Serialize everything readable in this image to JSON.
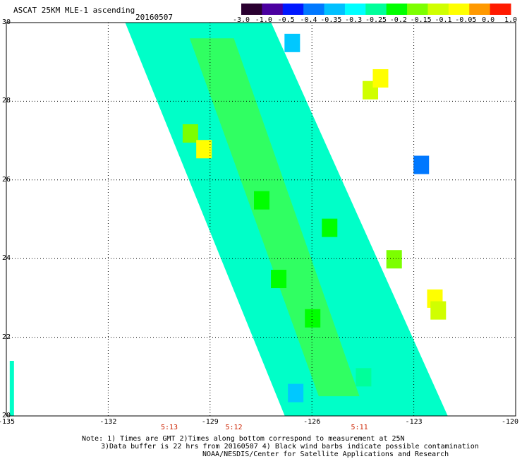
{
  "header": {
    "title": "ASCAT 25KM MLE-1 ascending",
    "date": "20160507"
  },
  "colorbar": {
    "labels": [
      "-3.0",
      "-1.0",
      "-0.5",
      "-0.4",
      "-0.35",
      "-0.3",
      "-0.25",
      "-0.2",
      "-0.15",
      "-0.1",
      "-0.05",
      "0.0",
      "1.0"
    ],
    "colors": [
      "#2a0030",
      "#4b00a0",
      "#0018ff",
      "#0078ff",
      "#00c0ff",
      "#00ffff",
      "#00ff9a",
      "#00ff00",
      "#7cff00",
      "#d0ff00",
      "#ffff00",
      "#ff9900",
      "#ff1a00"
    ]
  },
  "axes": {
    "lat_labels": [
      "30",
      "28",
      "26",
      "24",
      "22",
      "20"
    ],
    "lon_labels": [
      "-135",
      "-132",
      "-129",
      "-126",
      "-123",
      "-120"
    ],
    "lat_range": [
      20,
      30
    ],
    "lon_range": [
      -135,
      -120
    ],
    "grid": "dotted"
  },
  "times": [
    {
      "label": "5:13",
      "lon": -130.2
    },
    {
      "label": "5:12",
      "lon": -128.3
    },
    {
      "label": "5:11",
      "lon": -124.6
    }
  ],
  "notes": {
    "line1": "Note: 1) Times are GMT 2)Times along bottom correspond to measurement at 25N",
    "line2": "3)Data buffer is 22 hrs from 20160507 4) Black wind barbs indicate possible contamination",
    "line3": "NOAA/NESDIS/Center for Satellite Applications and Research"
  },
  "swath": {
    "base_color": "#00ffc8",
    "patches": [
      {
        "lat": 29.5,
        "lon": -126.6,
        "color": "#00c8ff"
      },
      {
        "lat": 28.3,
        "lon": -124.3,
        "color": "#d0ff00"
      },
      {
        "lat": 28.6,
        "lon": -124.0,
        "color": "#ffff00"
      },
      {
        "lat": 27.2,
        "lon": -129.6,
        "color": "#7cff00"
      },
      {
        "lat": 26.8,
        "lon": -129.2,
        "color": "#ffff00"
      },
      {
        "lat": 26.4,
        "lon": -122.8,
        "color": "#0078ff"
      },
      {
        "lat": 25.5,
        "lon": -127.5,
        "color": "#00ff00"
      },
      {
        "lat": 24.8,
        "lon": -125.5,
        "color": "#00ff00"
      },
      {
        "lat": 24.0,
        "lon": -123.6,
        "color": "#7cff00"
      },
      {
        "lat": 23.0,
        "lon": -122.4,
        "color": "#ffff00"
      },
      {
        "lat": 22.7,
        "lon": -122.3,
        "color": "#d0ff00"
      },
      {
        "lat": 23.5,
        "lon": -127.0,
        "color": "#00ff00"
      },
      {
        "lat": 22.5,
        "lon": -126.0,
        "color": "#00ff00"
      },
      {
        "lat": 20.6,
        "lon": -126.5,
        "color": "#00c8ff"
      },
      {
        "lat": 21.0,
        "lon": -124.5,
        "color": "#00ff9a"
      }
    ]
  }
}
